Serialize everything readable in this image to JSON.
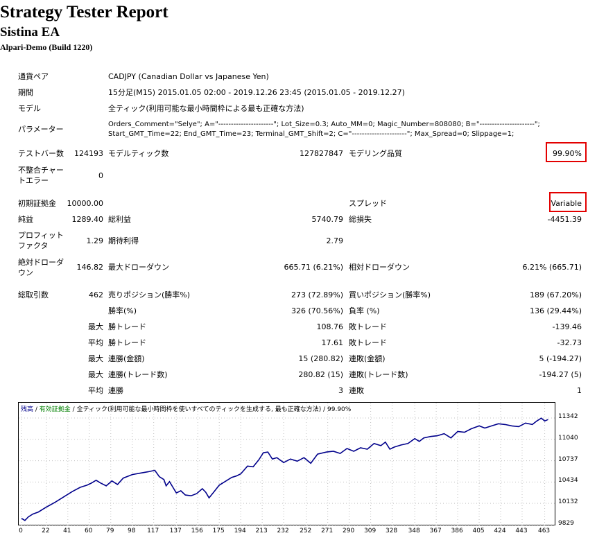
{
  "report": {
    "title": "Strategy Tester Report",
    "ea_name": "Sistina EA",
    "build": "Alpari-Demo (Build 1220)"
  },
  "info": {
    "pair_label": "通貨ペア",
    "pair_value": "CADJPY (Canadian Dollar vs Japanese Yen)",
    "period_label": "期間",
    "period_value": "15分足(M15) 2015.01.05 02:00 - 2019.12.26 23:45 (2015.01.05 - 2019.12.27)",
    "model_label": "モデル",
    "model_value": "全ティック(利用可能な最小時間枠による最も正確な方法)",
    "params_label": "パラメーター",
    "params_line1": "Orders_Comment=\"Selye\"; A=\"----------------------\"; Lot_Size=0.3; Auto_MM=0; Magic_Number=808080; B=\"----------------------\";",
    "params_line2": "Start_GMT_Time=22; End_GMT_Time=23; Terminal_GMT_Shift=2; C=\"----------------------\"; Max_Spread=0; Slippage=1;"
  },
  "stats": {
    "bars_label": "テストバー数",
    "bars_value": "124193",
    "ticks_label": "モデルティック数",
    "ticks_value": "127827847",
    "quality_label": "モデリング品質",
    "quality_value": "99.90%",
    "mismatch_label_1": "不整合チャー",
    "mismatch_label_2": "トエラー",
    "mismatch_value": "0",
    "deposit_label": "初期証拠金",
    "deposit_value": "10000.00",
    "spread_label": "スプレッド",
    "spread_value": "Variable",
    "net_label": "純益",
    "net_value": "1289.40",
    "gross_profit_label": "総利益",
    "gross_profit_value": "5740.79",
    "gross_loss_label": "総損失",
    "gross_loss_value": "-4451.39",
    "pf_label_1": "プロフィット",
    "pf_label_2": "ファクタ",
    "pf_value": "1.29",
    "expected_label": "期待利得",
    "expected_value": "2.79",
    "abs_dd_label_1": "絶対ドローダ",
    "abs_dd_label_2": "ウン",
    "abs_dd_value": "146.82",
    "max_dd_label": "最大ドローダウン",
    "max_dd_value": "665.71 (6.21%)",
    "rel_dd_label": "相対ドローダウン",
    "rel_dd_value": "6.21% (665.71)",
    "trades_label": "総取引数",
    "trades_value": "462",
    "short_label": "売りポジション(勝率%)",
    "short_value": "273 (72.89%)",
    "long_label": "買いポジション(勝率%)",
    "long_value": "189 (67.20%)",
    "winrate_label": "勝率(%)",
    "winrate_value": "326 (70.56%)",
    "lossrate_label": "負率 (%)",
    "lossrate_value": "136 (29.44%)",
    "max_word": "最大",
    "avg_word": "平均",
    "largest_win_label": "勝トレード",
    "largest_win_value": "108.76",
    "largest_loss_label": "敗トレード",
    "largest_loss_value": "-139.46",
    "avg_win_label": "勝トレード",
    "avg_win_value": "17.61",
    "avg_loss_label": "敗トレード",
    "avg_loss_value": "-32.73",
    "max_cons_win_label": "連勝(金額)",
    "max_cons_win_value": "15 (280.82)",
    "max_cons_loss_label": "連敗(金額)",
    "max_cons_loss_value": "5 (-194.27)",
    "max_cons_profit_label": "連勝(トレード数)",
    "max_cons_profit_value": "280.82 (15)",
    "max_cons_lossamt_label": "連敗(トレード数)",
    "max_cons_lossamt_value": "-194.27 (5)",
    "avg_cons_win_label": "連勝",
    "avg_cons_win_value": "3",
    "avg_cons_loss_label": "連敗",
    "avg_cons_loss_value": "1"
  },
  "colors": {
    "balance": "#00008b",
    "equity": "#008000",
    "highlight": "#e30000"
  },
  "chart_data": {
    "type": "line",
    "legend_balance": "残高",
    "legend_sep1": " / ",
    "legend_equity": "有効証拠金",
    "legend_sep2": " / ",
    "legend_model": "全ティック(利用可能な最小時間枠を使いすべてのティックを生成する, 最も正確な方法)",
    "legend_sep3": " / ",
    "legend_quality": "99.90%",
    "y_ticks": [
      "11342",
      "11040",
      "10737",
      "10434",
      "10132",
      "9829"
    ],
    "x_ticks": [
      "0",
      "22",
      "41",
      "60",
      "79",
      "98",
      "117",
      "137",
      "156",
      "175",
      "194",
      "213",
      "232",
      "252",
      "271",
      "290",
      "309",
      "328",
      "348",
      "367",
      "386",
      "405",
      "424",
      "443",
      "463"
    ],
    "ylim": [
      9829,
      11342
    ],
    "xlim": [
      0,
      470
    ],
    "series": [
      {
        "x": [
          0,
          3,
          6,
          10,
          15,
          22,
          30,
          38,
          45,
          52,
          58,
          62,
          66,
          70,
          75,
          80,
          85,
          90,
          98,
          105,
          112,
          118,
          122,
          126,
          128,
          131,
          134,
          137,
          141,
          145,
          150,
          155,
          160,
          163,
          166,
          170,
          175,
          180,
          186,
          190,
          194,
          200,
          205,
          210,
          214,
          218,
          222,
          226,
          232,
          238,
          244,
          250,
          256,
          262,
          270,
          276,
          282,
          288,
          294,
          300,
          306,
          312,
          318,
          322,
          326,
          330,
          336,
          342,
          348,
          352,
          356,
          362,
          368,
          374,
          380,
          386,
          392,
          398,
          405,
          410,
          416,
          422,
          428,
          434,
          440,
          446,
          452,
          456,
          460,
          463,
          466
        ],
        "values": [
          9920,
          9890,
          9940,
          9980,
          10010,
          10080,
          10150,
          10230,
          10300,
          10360,
          10390,
          10420,
          10460,
          10420,
          10380,
          10450,
          10400,
          10490,
          10540,
          10560,
          10580,
          10600,
          10510,
          10470,
          10380,
          10440,
          10360,
          10280,
          10310,
          10250,
          10240,
          10270,
          10340,
          10290,
          10210,
          10290,
          10390,
          10440,
          10500,
          10520,
          10550,
          10660,
          10650,
          10750,
          10850,
          10860,
          10760,
          10780,
          10710,
          10760,
          10730,
          10780,
          10700,
          10830,
          10860,
          10870,
          10840,
          10910,
          10870,
          10920,
          10900,
          10980,
          10950,
          11000,
          10900,
          10930,
          10960,
          10980,
          11050,
          11010,
          11060,
          11080,
          11090,
          11120,
          11060,
          11150,
          11140,
          11190,
          11230,
          11200,
          11230,
          11260,
          11250,
          11230,
          11220,
          11270,
          11250,
          11300,
          11340,
          11300,
          11320
        ]
      }
    ]
  }
}
